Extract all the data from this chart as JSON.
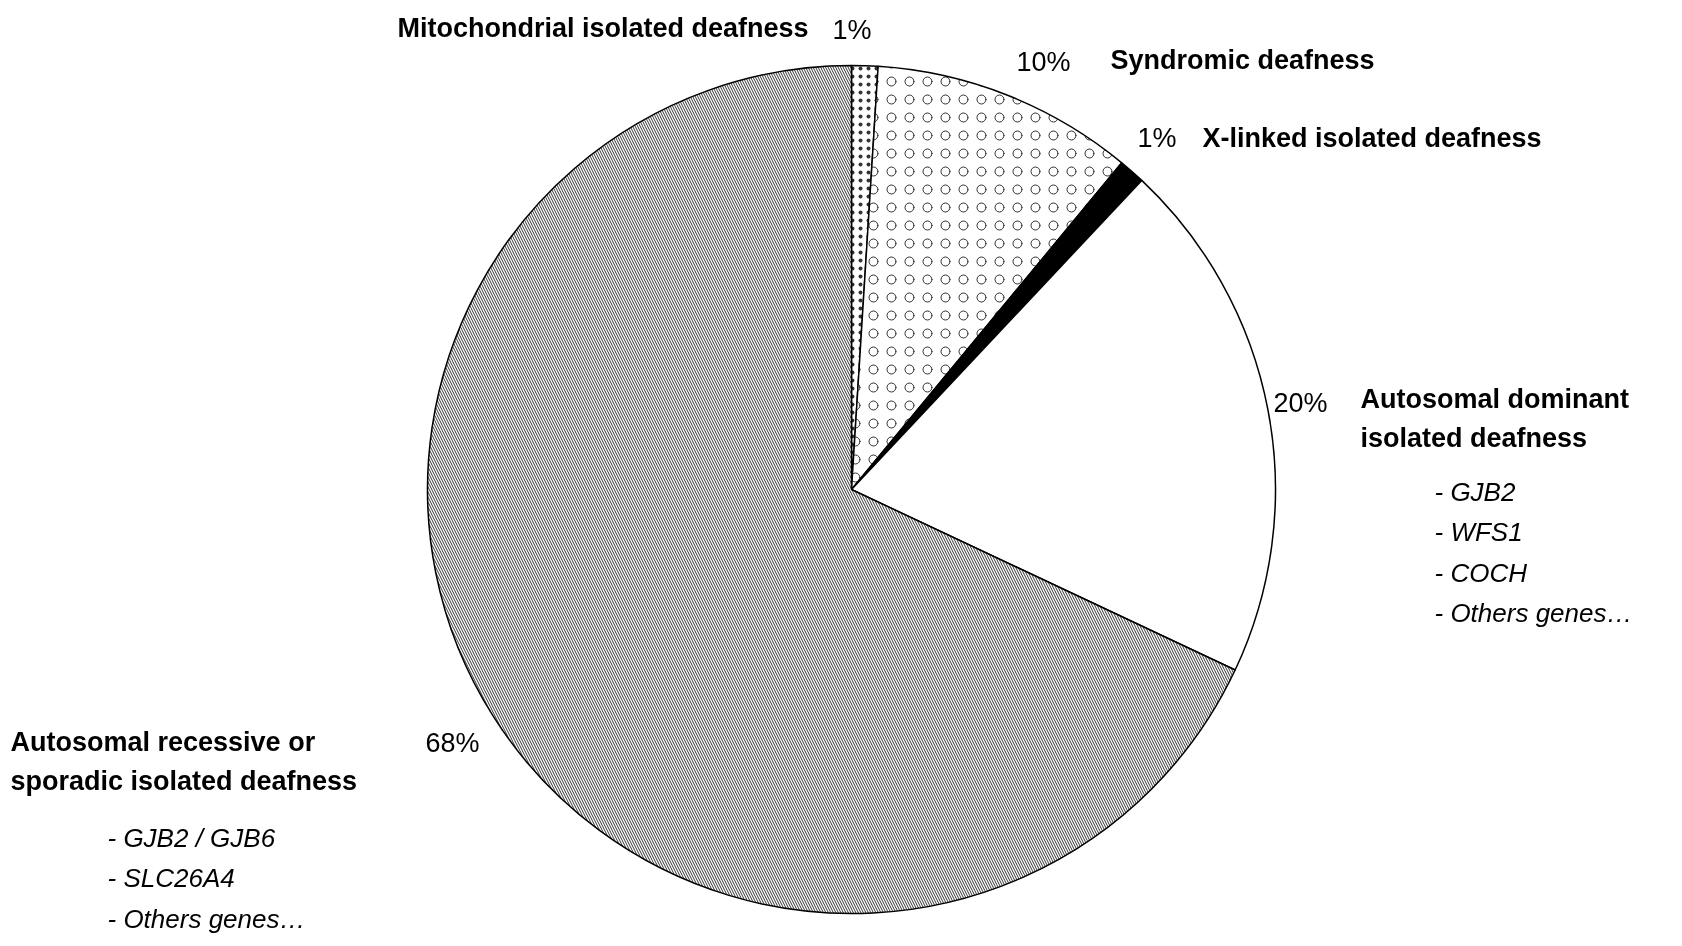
{
  "chart_data": {
    "type": "pie",
    "categories": [
      "Mitochondrial isolated deafness",
      "Syndromic deafness",
      "X-linked isolated deafness",
      "Autosomal dominant isolated deafness",
      "Autosomal recessive or sporadic isolated deafness"
    ],
    "values": [
      1,
      10,
      1,
      20,
      68
    ],
    "colors": [
      "#ffffff",
      "#ffffff",
      "#000000",
      "#ffffff",
      "#ffffff"
    ],
    "value_labels": [
      "1%",
      "10%",
      "1%",
      "20%",
      "68%"
    ],
    "annotations": [
      "- GJB2\n- WFS1\n- COCH\n- Others genes…",
      "- GJB2 / GJB6\n- SLC26A4\n- Others genes…"
    ]
  }
}
